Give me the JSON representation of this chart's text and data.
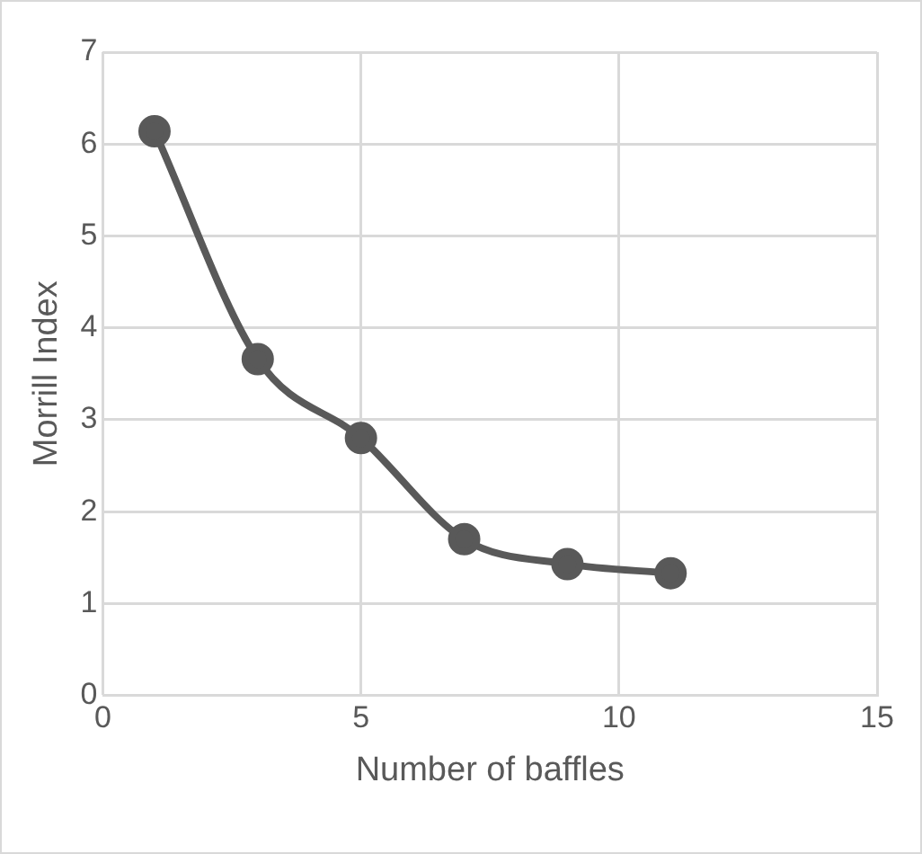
{
  "chart_data": {
    "type": "line",
    "xlabel": "Number of baffles",
    "ylabel": "Morrill Index",
    "x": [
      1,
      3,
      5,
      7,
      9,
      11
    ],
    "series": [
      {
        "color": "#595959",
        "values": [
          6.14,
          3.66,
          2.8,
          1.7,
          1.43,
          1.33
        ]
      }
    ],
    "xlim": [
      0,
      15
    ],
    "xticks": [
      0,
      5,
      10,
      15
    ],
    "ylim": [
      0,
      7
    ],
    "yticks": [
      0,
      1,
      2,
      3,
      4,
      5,
      6,
      7
    ],
    "grid": true,
    "marker": "circle",
    "legend": false
  }
}
